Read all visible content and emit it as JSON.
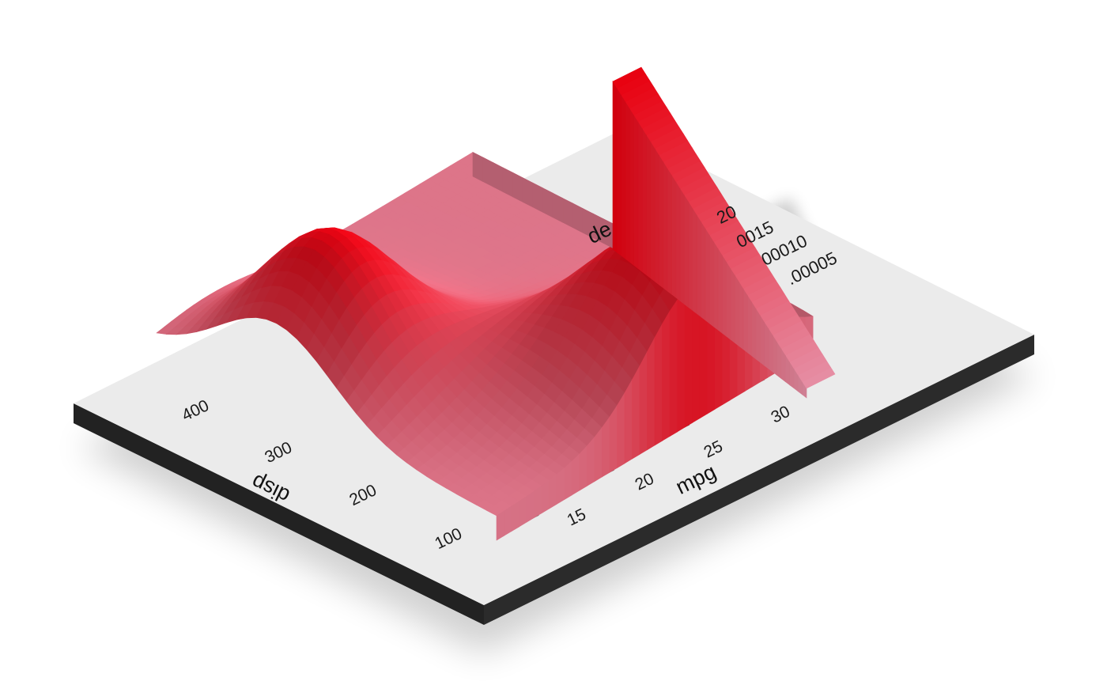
{
  "chart_data": {
    "type": "heatmap",
    "rendering": "3d-extruded-surface",
    "title": "",
    "xlabel": "mpg",
    "ylabel": "disp",
    "legend_title": "density",
    "legend_visible_title": "de",
    "legend_placement": "right",
    "grid": false,
    "x_ticks": [
      "15",
      "20",
      "25",
      "30"
    ],
    "x_tick_values": [
      15,
      20,
      25,
      30
    ],
    "y_ticks": [
      "100",
      "200",
      "300",
      "400"
    ],
    "y_tick_values": [
      100,
      200,
      300,
      400
    ],
    "legend_ticks": [
      "20",
      "0015",
      "00010",
      ".00005"
    ],
    "legend_tick_values": [
      0.0002,
      0.00015,
      0.0001,
      5e-05
    ],
    "xlim": [
      12,
      33
    ],
    "ylim": [
      80,
      480
    ],
    "zlim": [
      0,
      0.00022
    ],
    "colors": {
      "low": "#e68fa5",
      "high": "#e8000f",
      "panel": "#ebebeb",
      "base": "#222222"
    },
    "density_peaks": [
      {
        "mpg": 15.5,
        "disp": 340,
        "density": 0.00021
      },
      {
        "mpg": 25.5,
        "disp": 120,
        "density": 0.00021
      },
      {
        "mpg": 20.5,
        "disp": 200,
        "density": 8e-05
      }
    ]
  }
}
